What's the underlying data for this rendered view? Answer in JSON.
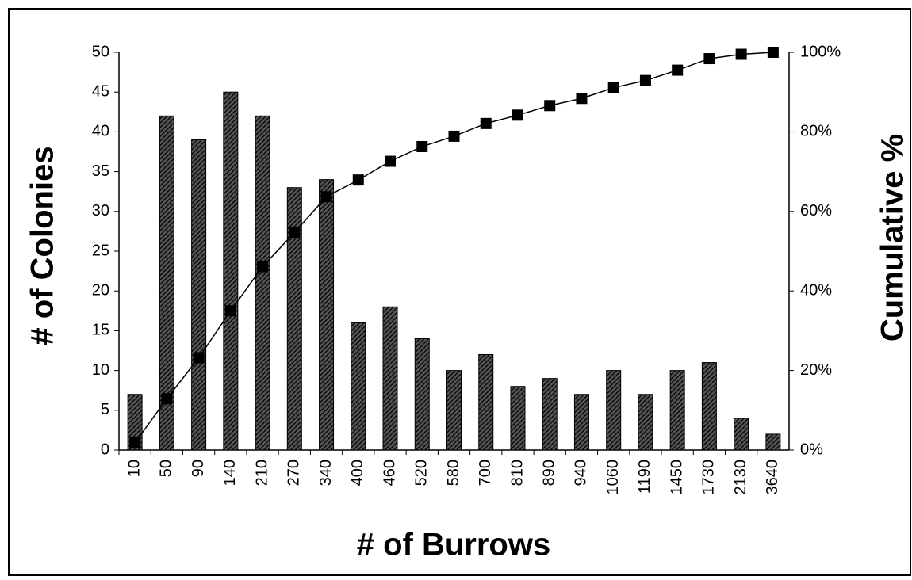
{
  "chart_data": {
    "type": "bar",
    "x_label": "# of Burrows",
    "y_label": "# of Colonies",
    "y2_label": "Cumulative %",
    "categories": [
      "10",
      "50",
      "90",
      "140",
      "210",
      "270",
      "340",
      "400",
      "460",
      "520",
      "580",
      "700",
      "810",
      "890",
      "940",
      "1060",
      "1190",
      "1450",
      "1730",
      "2130",
      "3640"
    ],
    "series": [
      {
        "type": "bar",
        "color": "#222222",
        "values": [
          7,
          42,
          39,
          45,
          42,
          33,
          34,
          16,
          18,
          14,
          10,
          12,
          8,
          9,
          7,
          10,
          7,
          10,
          11,
          4,
          2
        ]
      },
      {
        "type": "line",
        "axis": "y2",
        "color": "#000000",
        "values": [
          1.8,
          12.9,
          23.2,
          35.0,
          46.1,
          54.7,
          63.7,
          67.9,
          72.6,
          76.3,
          78.9,
          82.1,
          84.2,
          86.6,
          88.4,
          91.1,
          92.9,
          95.5,
          98.4,
          99.5,
          100
        ]
      }
    ],
    "ylim": [
      0,
      50
    ],
    "yticks": [
      0,
      5,
      10,
      15,
      20,
      25,
      30,
      35,
      40,
      45,
      50
    ],
    "y2lim": [
      0,
      100
    ],
    "y2ticks": [
      {
        "value": 0,
        "label": "0%"
      },
      {
        "value": 20,
        "label": "20%"
      },
      {
        "value": 40,
        "label": "40%"
      },
      {
        "value": 60,
        "label": "60%"
      },
      {
        "value": 80,
        "label": "80%"
      },
      {
        "value": 100,
        "label": "100%"
      }
    ],
    "grid": false
  }
}
